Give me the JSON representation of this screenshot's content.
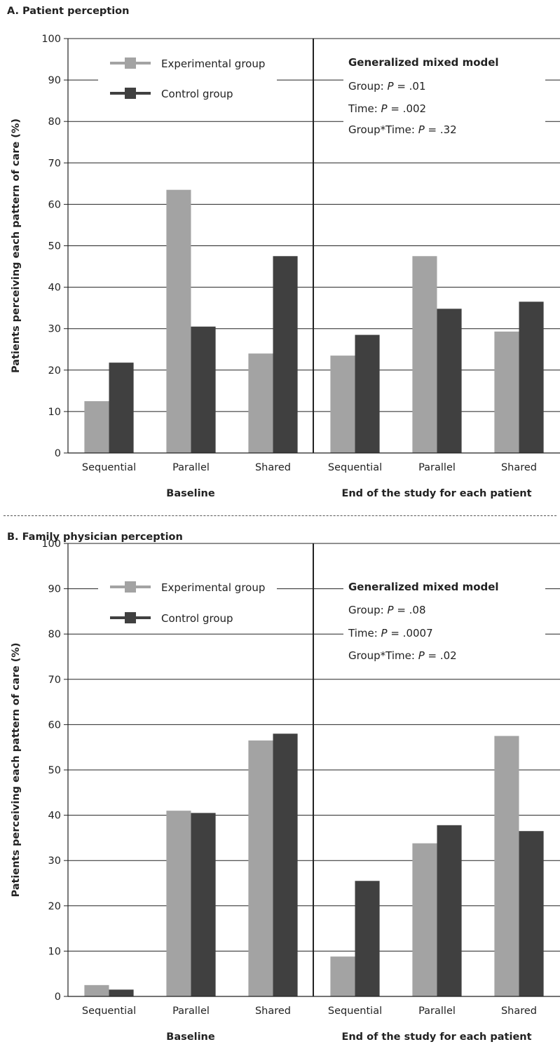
{
  "chart_data": [
    {
      "type": "bar",
      "title": "A. Patient perception",
      "ylabel": "Patients perceiving each pattern of care (%)",
      "ylim": [
        0,
        100
      ],
      "yticks": [
        0,
        10,
        20,
        30,
        40,
        50,
        60,
        70,
        80,
        90,
        100
      ],
      "groups": [
        "Baseline",
        "End of the study for each patient"
      ],
      "categories": [
        "Sequential",
        "Parallel",
        "Shared",
        "Sequential",
        "Parallel",
        "Shared"
      ],
      "series": [
        {
          "name": "Experimental group",
          "color": "#a3a3a3",
          "values": [
            12.5,
            63.5,
            24.0,
            23.5,
            47.5,
            29.3
          ]
        },
        {
          "name": "Control group",
          "color": "#404040",
          "values": [
            21.8,
            30.5,
            47.5,
            28.5,
            34.8,
            36.5
          ]
        }
      ],
      "legend_position": "top-left",
      "grid": true,
      "annotation": {
        "title": "Generalized mixed model",
        "lines": [
          {
            "label": "Group: ",
            "p": "P",
            "value": " = .01"
          },
          {
            "label": "Time: ",
            "p": "P",
            "value": " = .002"
          },
          {
            "label": "Group*Time: ",
            "p": "P",
            "value": " = .32"
          }
        ]
      }
    },
    {
      "type": "bar",
      "title": "B. Family physician perception",
      "ylabel": "Patients perceiving each pattern of care (%)",
      "ylim": [
        0,
        100
      ],
      "yticks": [
        0,
        10,
        20,
        30,
        40,
        50,
        60,
        70,
        80,
        90,
        100
      ],
      "groups": [
        "Baseline",
        "End of the study for each patient"
      ],
      "categories": [
        "Sequential",
        "Parallel",
        "Shared",
        "Sequential",
        "Parallel",
        "Shared"
      ],
      "series": [
        {
          "name": "Experimental group",
          "color": "#a3a3a3",
          "values": [
            2.5,
            41.0,
            56.5,
            8.8,
            33.8,
            57.5
          ]
        },
        {
          "name": "Control group",
          "color": "#404040",
          "values": [
            1.5,
            40.5,
            58.0,
            25.5,
            37.8,
            36.5
          ]
        }
      ],
      "legend_position": "top-left",
      "grid": true,
      "annotation": {
        "title": "Generalized mixed model",
        "lines": [
          {
            "label": "Group: ",
            "p": "P",
            "value": " = .08"
          },
          {
            "label": "Time: ",
            "p": "P",
            "value": " = .0007"
          },
          {
            "label": "Group*Time: ",
            "p": "P",
            "value": " = .02"
          }
        ]
      }
    }
  ]
}
